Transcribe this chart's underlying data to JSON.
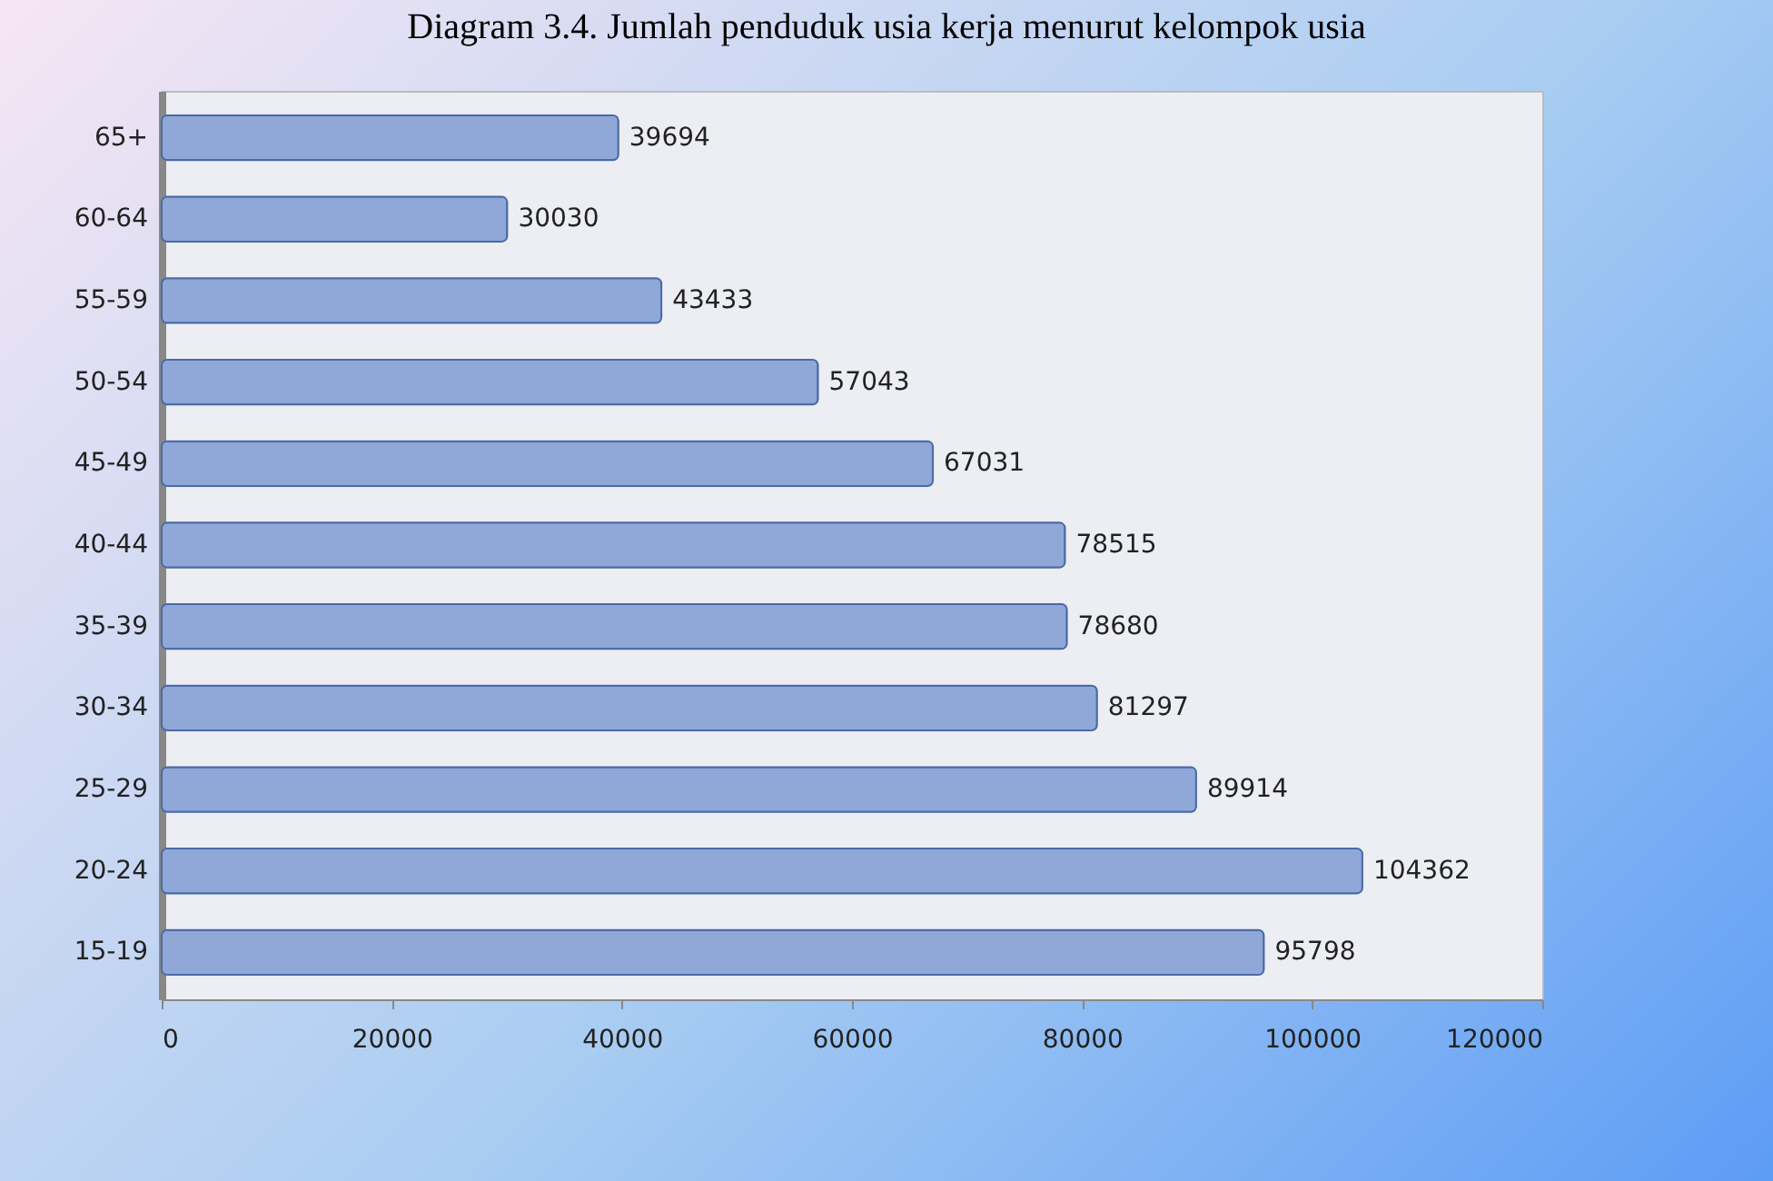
{
  "chart_data": {
    "type": "bar",
    "orientation": "horizontal",
    "title": "Diagram 3.4. Jumlah penduduk usia kerja menurut kelompok usia",
    "categories": [
      "65+",
      "60-64",
      "55-59",
      "50-54",
      "45-49",
      "40-44",
      "35-39",
      "30-34",
      "25-29",
      "20-24",
      "15-19"
    ],
    "values": [
      39694,
      30030,
      43433,
      57043,
      67031,
      78515,
      78680,
      81297,
      89914,
      104362,
      95798
    ],
    "color": "#8fa8d8",
    "xlim": [
      0,
      120000
    ],
    "xticks": [
      0,
      20000,
      40000,
      60000,
      80000,
      100000,
      120000
    ],
    "data_labels": true,
    "grid": false
  }
}
